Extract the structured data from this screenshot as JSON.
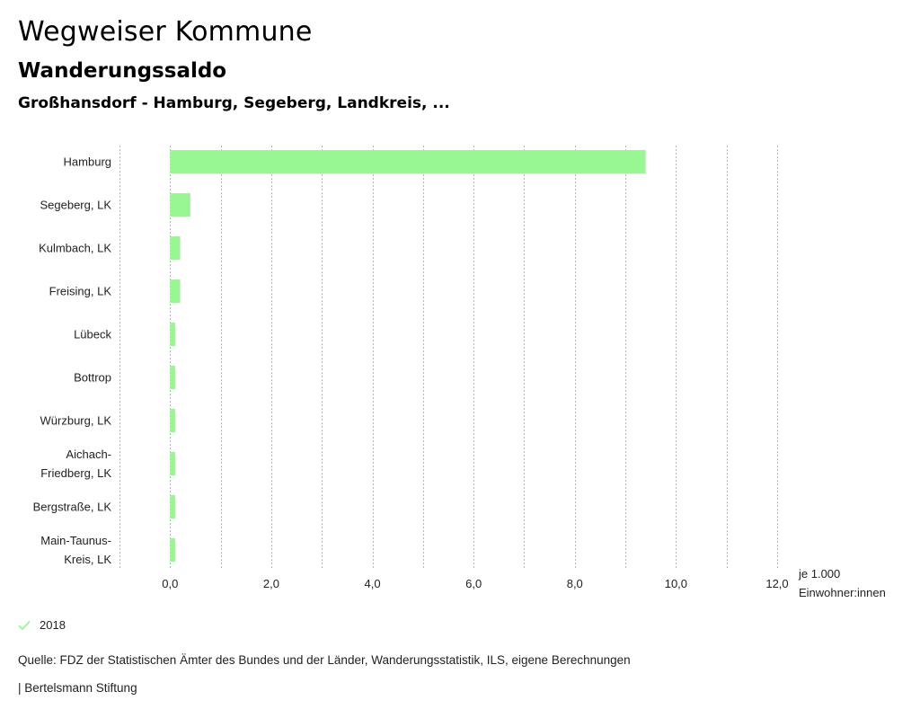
{
  "header": {
    "app_title": "Wegweiser Kommune",
    "subtitle": "Wanderungssaldo",
    "chart_title": "Großhansdorf - Hamburg, Segeberg, Landkreis, ..."
  },
  "colors": {
    "bar": "#98f792",
    "grid": "#b5b5b5",
    "legend_check": "#98f792"
  },
  "chart_data": {
    "type": "bar",
    "orientation": "horizontal",
    "title": "Großhansdorf - Hamburg, Segeberg, Landkreis, ...",
    "categories": [
      [
        "Hamburg"
      ],
      [
        "Segeberg, LK"
      ],
      [
        "Kulmbach, LK"
      ],
      [
        "Freising, LK"
      ],
      [
        "Lübeck"
      ],
      [
        "Bottrop"
      ],
      [
        "Würzburg, LK"
      ],
      [
        "Aichach-",
        "Friedberg, LK"
      ],
      [
        "Bergstraße, LK"
      ],
      [
        "Main-Taunus-",
        "Kreis, LK"
      ]
    ],
    "series": [
      {
        "name": "2018",
        "values": [
          9.4,
          0.4,
          0.2,
          0.2,
          0.1,
          0.1,
          0.1,
          0.1,
          0.1,
          0.1
        ]
      }
    ],
    "xlim": [
      -1.0,
      12.0
    ],
    "ticks": [
      0,
      2,
      4,
      6,
      8,
      10,
      12
    ],
    "tick_labels": [
      "0,0",
      "2,0",
      "4,0",
      "6,0",
      "8,0",
      "10,0",
      "12,0"
    ],
    "gridlines_at": [
      -1,
      0,
      1,
      2,
      3,
      4,
      5,
      6,
      7,
      8,
      9,
      10,
      11,
      12
    ],
    "unit_label": [
      "je 1.000",
      "Einwohner:innen"
    ],
    "legend_position": "bottom-left"
  },
  "legend": {
    "label": "2018"
  },
  "footer": {
    "source": "Quelle: FDZ der Statistischen Ämter des Bundes und der Länder, Wanderungsstatistik, ILS, eigene Berechnungen",
    "credit": "| Bertelsmann Stiftung"
  }
}
